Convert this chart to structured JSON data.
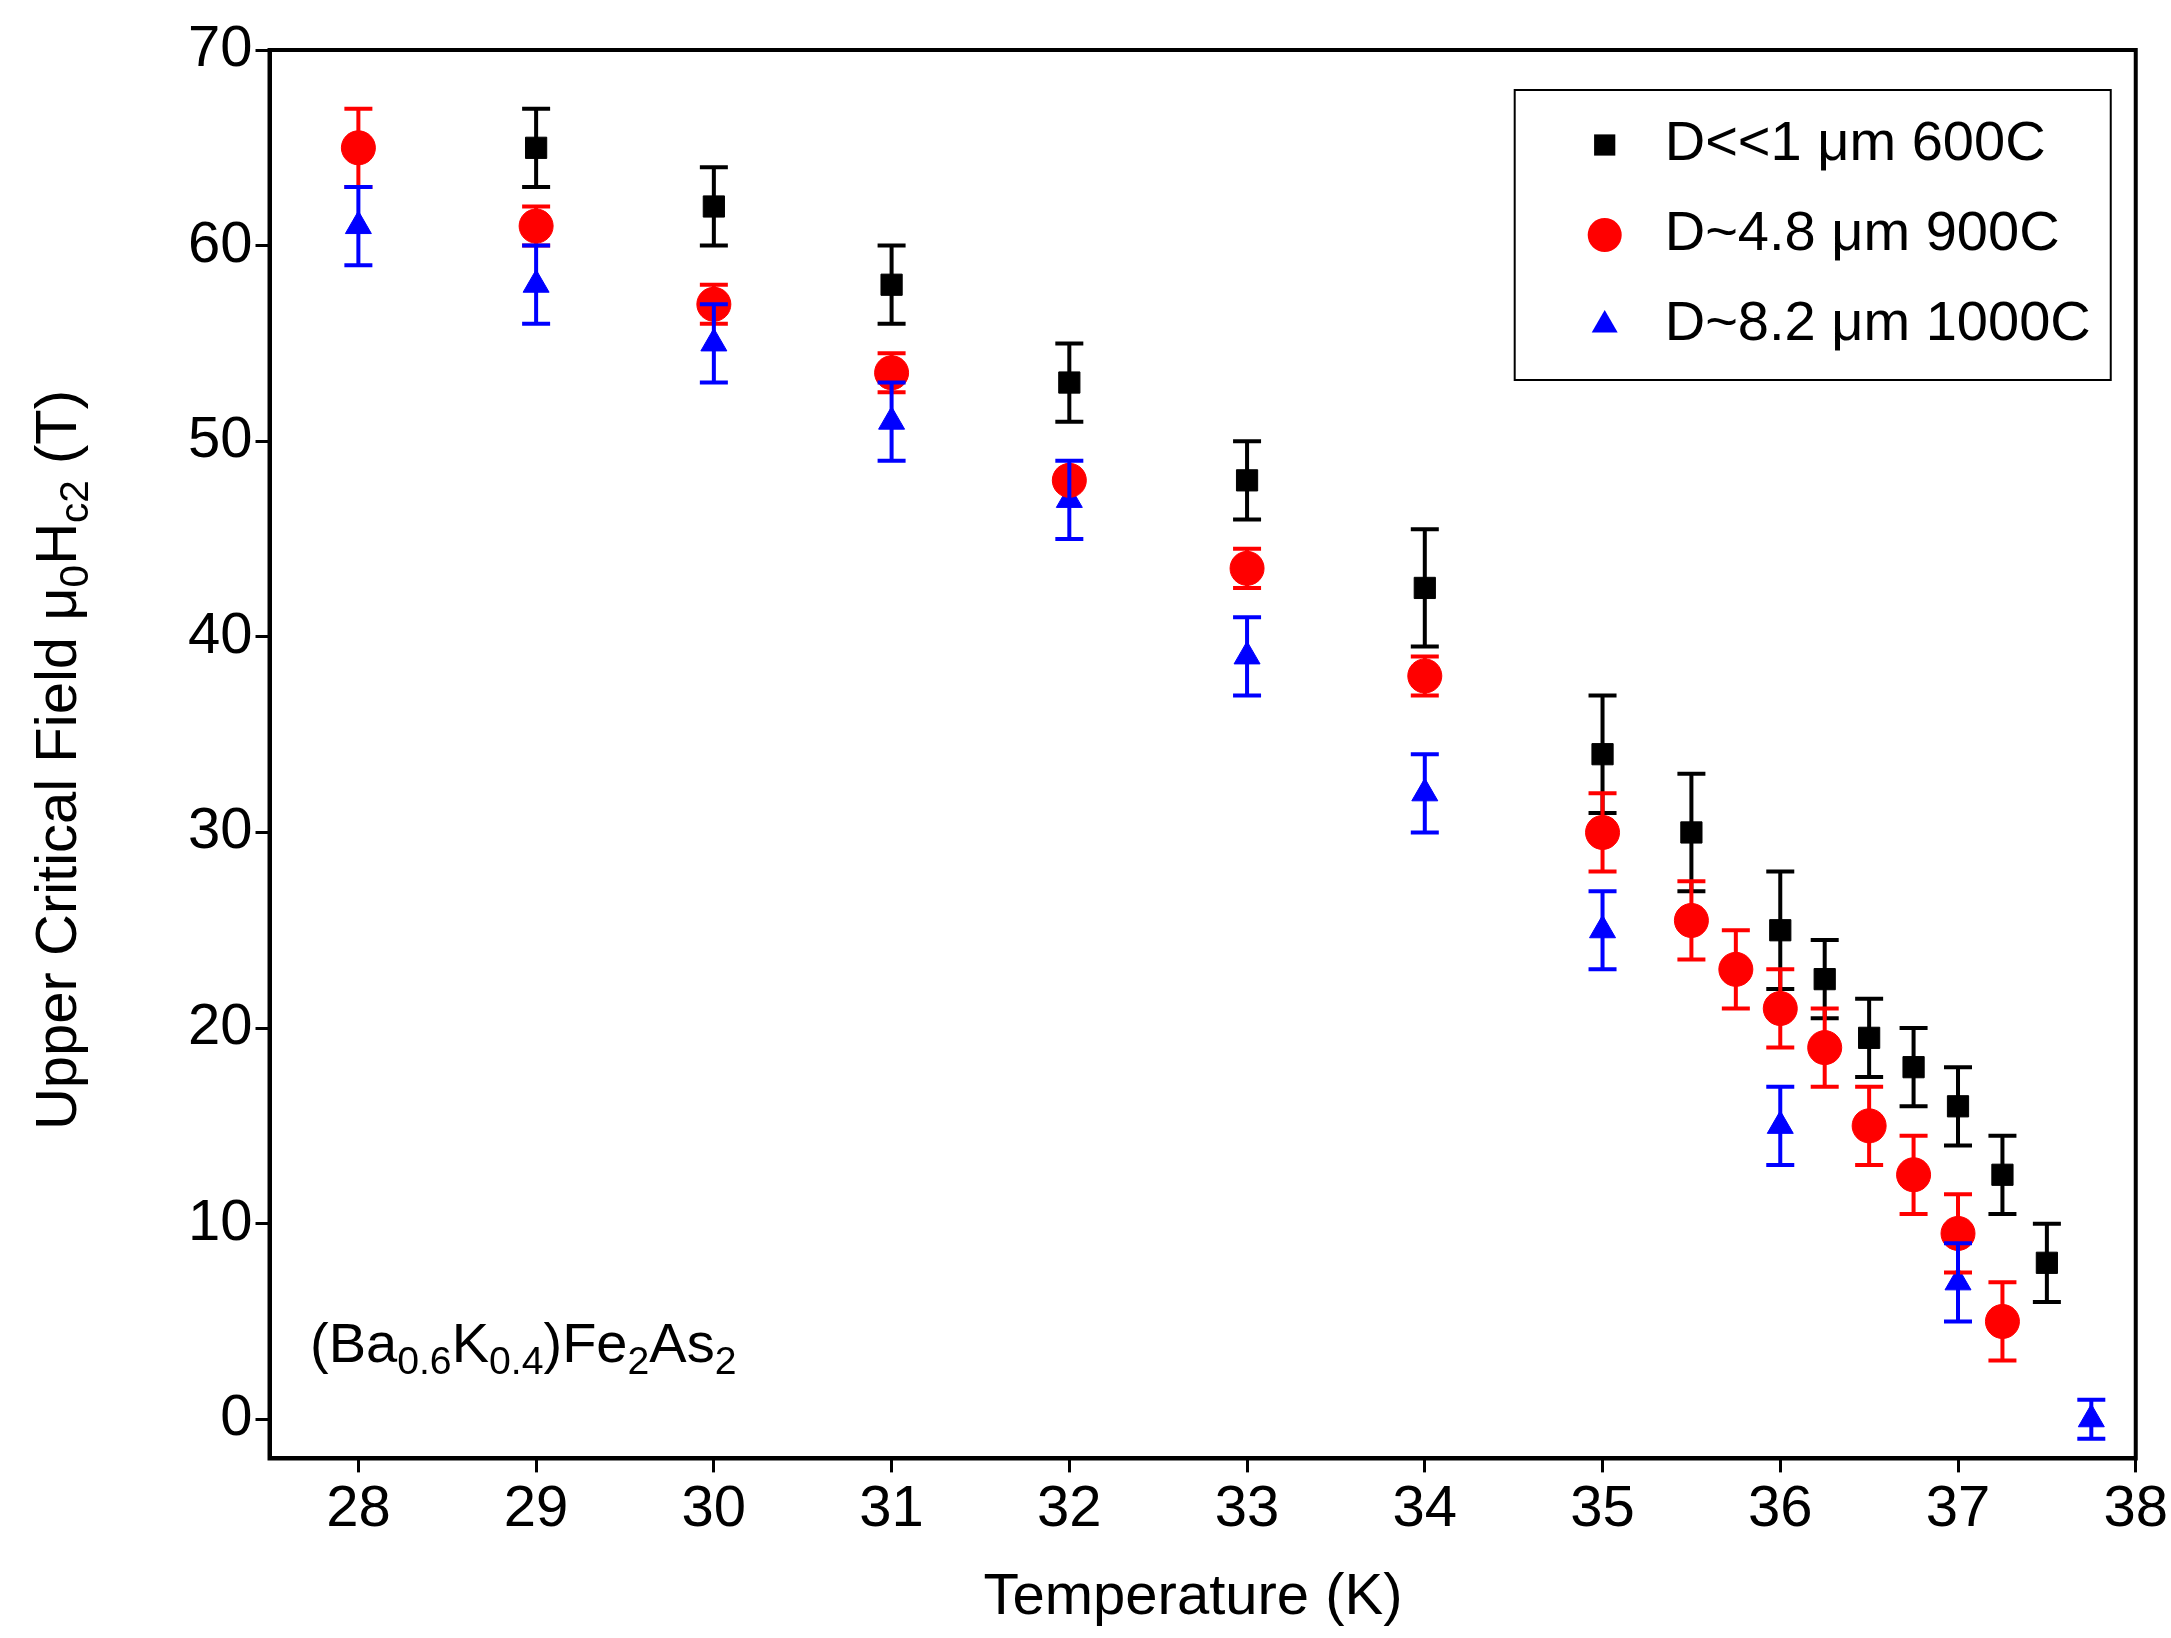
{
  "chart_data": {
    "type": "scatter",
    "xlabel": "Temperature (K)",
    "ylabel": "Upper Critical Field μ$_{0}$H$_{c2}$ (T)",
    "xlim": [
      27.5,
      38
    ],
    "xticks": [
      28,
      29,
      30,
      31,
      32,
      33,
      34,
      35,
      36,
      37,
      38
    ],
    "ylim": [
      -2,
      70
    ],
    "yticks": [
      0,
      10,
      20,
      30,
      40,
      50,
      60,
      70
    ],
    "grid": false,
    "legend": "top right",
    "annotations": [
      "(Ba$_{0.6}$K$_{0.4}$)Fe$_{2}$As$_{2}$"
    ],
    "series": [
      {
        "name": "D<<1 μm 600C",
        "color": "#000000",
        "marker": "square",
        "x": [
          29,
          30,
          31,
          32,
          33,
          34,
          35,
          35.5,
          36,
          36.25,
          36.5,
          36.75,
          37,
          37.25,
          37.5
        ],
        "values": [
          65,
          62,
          58,
          53,
          48,
          42.5,
          34,
          30,
          25,
          22.5,
          19.5,
          18,
          16,
          12.5,
          8
        ],
        "errors": [
          2,
          2,
          2,
          2,
          2,
          3,
          3,
          3,
          3,
          2,
          2,
          2,
          2,
          2,
          2
        ]
      },
      {
        "name": "D~4.8 μm 900C",
        "color": "#ff0000",
        "marker": "circle",
        "x": [
          28,
          29,
          30,
          31,
          32,
          33,
          34,
          35,
          35.5,
          35.75,
          36,
          36.25,
          36.5,
          36.75,
          37,
          37.25
        ],
        "values": [
          65,
          61,
          57,
          53.5,
          48,
          43.5,
          38,
          30,
          25.5,
          23,
          21,
          19,
          15,
          12.5,
          9.5,
          5
        ],
        "errors": [
          2,
          1,
          1,
          1,
          null,
          1,
          1,
          2,
          2,
          2,
          2,
          2,
          2,
          2,
          2,
          2
        ]
      },
      {
        "name": "D~8.2 μm 1000C",
        "color": "#0000ff",
        "marker": "triangle",
        "x": [
          28,
          29,
          30,
          31,
          32,
          33,
          34,
          35,
          36,
          37,
          37.75
        ],
        "values": [
          61,
          58,
          55,
          51,
          47,
          39,
          32,
          25,
          15,
          7,
          0
        ],
        "errors": [
          2,
          2,
          2,
          2,
          2,
          2,
          2,
          2,
          2,
          2,
          1
        ]
      }
    ]
  }
}
